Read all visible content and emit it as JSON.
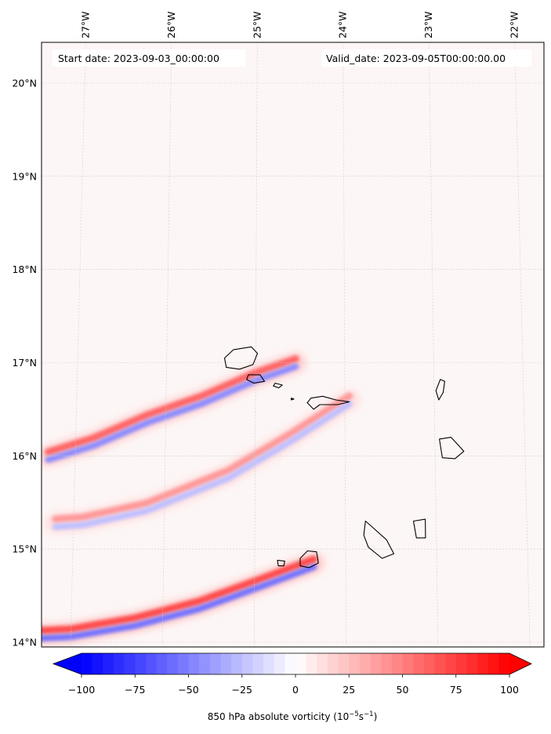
{
  "map": {
    "start_date_text": "Start date: 2023-09-03_00:00:00",
    "valid_date_text": "Valid_date: 2023-09-05T00:00:00.00",
    "lon_labels": [
      {
        "text": "27°W",
        "lon": -27
      },
      {
        "text": "26°W",
        "lon": -26
      },
      {
        "text": "25°W",
        "lon": -25
      },
      {
        "text": "24°W",
        "lon": -24
      },
      {
        "text": "23°W",
        "lon": -23
      },
      {
        "text": "22°W",
        "lon": -22
      }
    ],
    "lat_labels": [
      {
        "text": "20°N",
        "lat": 20
      },
      {
        "text": "19°N",
        "lat": 19
      },
      {
        "text": "18°N",
        "lat": 18
      },
      {
        "text": "17°N",
        "lat": 17
      },
      {
        "text": "16°N",
        "lat": 16
      },
      {
        "text": "15°N",
        "lat": 15
      },
      {
        "text": "14°N",
        "lat": 14
      }
    ],
    "extent": {
      "lon_min": -27.45,
      "lon_max": -21.9,
      "lat_min": 13.96,
      "lat_max": 20.43
    },
    "background_color": "#fdf6f6",
    "grid": true,
    "projection_note": "gridlines slightly curved (conic-like projection)"
  },
  "colorbar": {
    "title_prefix": "850 hPa absolute vorticity (10",
    "title_exp1": "−5",
    "title_mid": "s",
    "title_exp2": "−1",
    "title_suffix": ")",
    "vmin": -100,
    "vmax": 100,
    "levels": 41,
    "extend": "both",
    "min_color": "#0000ff",
    "mid_color": "#ffffff",
    "max_color": "#ff0000",
    "ticks": [
      {
        "text": "−100",
        "value": -100
      },
      {
        "text": "−75",
        "value": -75
      },
      {
        "text": "−50",
        "value": -50
      },
      {
        "text": "−25",
        "value": -25
      },
      {
        "text": "0",
        "value": 0
      },
      {
        "text": "25",
        "value": 25
      },
      {
        "text": "50",
        "value": 50
      },
      {
        "text": "75",
        "value": 75
      },
      {
        "text": "100",
        "value": 100
      }
    ]
  },
  "vorticity_streaks": [
    {
      "name": "santo-antao-wake",
      "positive_peak": 60,
      "negative_peak": -45,
      "path": [
        [
          -24.55,
          17.0
        ],
        [
          -25.0,
          16.85
        ],
        [
          -25.6,
          16.6
        ],
        [
          -26.2,
          16.4
        ],
        [
          -26.8,
          16.15
        ],
        [
          -27.3,
          16.0
        ]
      ]
    },
    {
      "name": "sao-nicolau-wake",
      "positive_peak": 40,
      "negative_peak": -25,
      "path": [
        [
          -23.95,
          16.6
        ],
        [
          -24.6,
          16.2
        ],
        [
          -25.3,
          15.8
        ],
        [
          -26.2,
          15.45
        ],
        [
          -26.9,
          15.3
        ],
        [
          -27.2,
          15.28
        ]
      ]
    },
    {
      "name": "fogo-wake",
      "positive_peak": 70,
      "negative_peak": -55,
      "path": [
        [
          -24.35,
          14.85
        ],
        [
          -24.9,
          14.65
        ],
        [
          -25.6,
          14.4
        ],
        [
          -26.3,
          14.22
        ],
        [
          -27.0,
          14.1
        ],
        [
          -27.4,
          14.08
        ]
      ]
    }
  ],
  "islands": [
    {
      "name": "santo-antao",
      "coords": [
        [
          -25.35,
          17.05
        ],
        [
          -25.25,
          17.14
        ],
        [
          -25.05,
          17.17
        ],
        [
          -24.98,
          17.1
        ],
        [
          -25.03,
          16.98
        ],
        [
          -25.18,
          16.93
        ],
        [
          -25.33,
          16.95
        ]
      ]
    },
    {
      "name": "sao-vicente",
      "coords": [
        [
          -25.08,
          16.87
        ],
        [
          -24.95,
          16.87
        ],
        [
          -24.9,
          16.8
        ],
        [
          -25.02,
          16.78
        ],
        [
          -25.1,
          16.82
        ]
      ]
    },
    {
      "name": "santa-luzia",
      "coords": [
        [
          -24.78,
          16.78
        ],
        [
          -24.7,
          16.76
        ],
        [
          -24.74,
          16.73
        ],
        [
          -24.8,
          16.75
        ]
      ]
    },
    {
      "name": "ilheu-raso",
      "coords": [
        [
          -24.6,
          16.62
        ],
        [
          -24.57,
          16.61
        ],
        [
          -24.6,
          16.6
        ]
      ]
    },
    {
      "name": "sao-nicolau",
      "coords": [
        [
          -24.38,
          16.62
        ],
        [
          -24.25,
          16.64
        ],
        [
          -24.1,
          16.6
        ],
        [
          -23.95,
          16.58
        ],
        [
          -24.08,
          16.55
        ],
        [
          -24.28,
          16.55
        ],
        [
          -24.35,
          16.5
        ],
        [
          -24.42,
          16.57
        ]
      ]
    },
    {
      "name": "sal",
      "coords": [
        [
          -22.93,
          16.82
        ],
        [
          -22.88,
          16.8
        ],
        [
          -22.9,
          16.68
        ],
        [
          -22.95,
          16.6
        ],
        [
          -22.98,
          16.7
        ]
      ]
    },
    {
      "name": "boa-vista",
      "coords": [
        [
          -22.95,
          16.18
        ],
        [
          -22.82,
          16.2
        ],
        [
          -22.68,
          16.05
        ],
        [
          -22.78,
          15.97
        ],
        [
          -22.92,
          15.98
        ]
      ]
    },
    {
      "name": "maio",
      "coords": [
        [
          -23.25,
          15.3
        ],
        [
          -23.12,
          15.32
        ],
        [
          -23.12,
          15.12
        ],
        [
          -23.22,
          15.12
        ]
      ]
    },
    {
      "name": "santiago",
      "coords": [
        [
          -23.78,
          15.3
        ],
        [
          -23.72,
          15.25
        ],
        [
          -23.55,
          15.1
        ],
        [
          -23.47,
          14.95
        ],
        [
          -23.6,
          14.9
        ],
        [
          -23.75,
          15.02
        ],
        [
          -23.8,
          15.15
        ]
      ]
    },
    {
      "name": "fogo",
      "coords": [
        [
          -24.5,
          14.9
        ],
        [
          -24.42,
          14.98
        ],
        [
          -24.32,
          14.97
        ],
        [
          -24.3,
          14.85
        ],
        [
          -24.4,
          14.8
        ],
        [
          -24.5,
          14.82
        ]
      ]
    },
    {
      "name": "brava",
      "coords": [
        [
          -24.75,
          14.88
        ],
        [
          -24.67,
          14.87
        ],
        [
          -24.68,
          14.82
        ],
        [
          -24.74,
          14.82
        ]
      ]
    }
  ]
}
